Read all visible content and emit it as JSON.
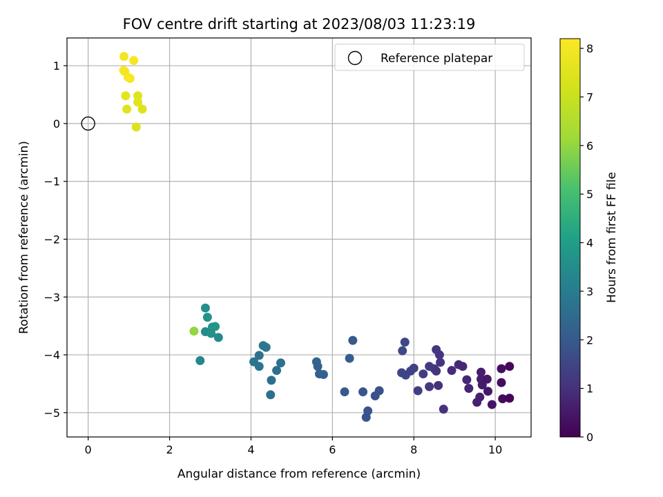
{
  "chart_data": {
    "type": "scatter",
    "title": "FOV centre drift starting at 2023/08/03 11:23:19",
    "xlabel": "Angular distance from reference (arcmin)",
    "ylabel": "Rotation from reference (arcmin)",
    "xlim": [
      -0.52,
      10.88
    ],
    "ylim": [
      -5.42,
      1.48
    ],
    "xticks": [
      0,
      2,
      4,
      6,
      8,
      10
    ],
    "yticks": [
      1,
      0,
      -1,
      -2,
      -3,
      -4,
      -5
    ],
    "xtick_labels": [
      "0",
      "2",
      "4",
      "6",
      "8",
      "10"
    ],
    "ytick_labels": [
      "1",
      "0",
      "−1",
      "−2",
      "−3",
      "−4",
      "−5"
    ],
    "grid": true,
    "colormap": "viridis",
    "colorbar": {
      "label": "Hours from first FF file",
      "range": [
        0,
        8.2
      ],
      "ticks": [
        0,
        1,
        2,
        3,
        4,
        5,
        6,
        7,
        8
      ],
      "tick_labels": [
        "0",
        "1",
        "2",
        "3",
        "4",
        "5",
        "6",
        "7",
        "8"
      ]
    },
    "reference_point": {
      "x": 0,
      "y": 0
    },
    "legend": {
      "position": "top-right",
      "entries": [
        "Reference platepar"
      ]
    },
    "points": [
      {
        "x": 0.88,
        "y": 1.16,
        "t": 7.9
      },
      {
        "x": 1.12,
        "y": 1.09,
        "t": 8.0
      },
      {
        "x": 0.87,
        "y": 0.92,
        "t": 8.1
      },
      {
        "x": 0.9,
        "y": 0.9,
        "t": 8.0
      },
      {
        "x": 1.03,
        "y": 0.78,
        "t": 8.05
      },
      {
        "x": 0.98,
        "y": 0.8,
        "t": 8.1
      },
      {
        "x": 0.92,
        "y": 0.48,
        "t": 7.6
      },
      {
        "x": 1.22,
        "y": 0.48,
        "t": 7.5
      },
      {
        "x": 1.22,
        "y": 0.37,
        "t": 7.55
      },
      {
        "x": 0.95,
        "y": 0.25,
        "t": 7.5
      },
      {
        "x": 1.33,
        "y": 0.25,
        "t": 7.45
      },
      {
        "x": 1.18,
        "y": -0.06,
        "t": 7.4
      },
      {
        "x": 2.6,
        "y": -3.59,
        "t": 6.0
      },
      {
        "x": 2.88,
        "y": -3.19,
        "t": 3.6
      },
      {
        "x": 2.93,
        "y": -3.35,
        "t": 3.7
      },
      {
        "x": 3.05,
        "y": -3.52,
        "t": 3.8
      },
      {
        "x": 3.12,
        "y": -3.51,
        "t": 3.75
      },
      {
        "x": 2.88,
        "y": -3.6,
        "t": 3.5
      },
      {
        "x": 3.02,
        "y": -3.63,
        "t": 3.6
      },
      {
        "x": 3.2,
        "y": -3.7,
        "t": 3.4
      },
      {
        "x": 2.75,
        "y": -4.1,
        "t": 3.3
      },
      {
        "x": 4.3,
        "y": -3.84,
        "t": 2.9
      },
      {
        "x": 4.37,
        "y": -3.87,
        "t": 2.8
      },
      {
        "x": 4.2,
        "y": -4.01,
        "t": 2.7
      },
      {
        "x": 4.07,
        "y": -4.12,
        "t": 2.8
      },
      {
        "x": 4.2,
        "y": -4.2,
        "t": 2.75
      },
      {
        "x": 4.73,
        "y": -4.14,
        "t": 2.7
      },
      {
        "x": 4.63,
        "y": -4.27,
        "t": 2.65
      },
      {
        "x": 4.5,
        "y": -4.44,
        "t": 2.6
      },
      {
        "x": 4.48,
        "y": -4.69,
        "t": 2.6
      },
      {
        "x": 5.61,
        "y": -4.12,
        "t": 2.3
      },
      {
        "x": 5.64,
        "y": -4.2,
        "t": 2.25
      },
      {
        "x": 5.68,
        "y": -4.33,
        "t": 2.2
      },
      {
        "x": 5.78,
        "y": -4.34,
        "t": 2.2
      },
      {
        "x": 6.42,
        "y": -4.06,
        "t": 2.1
      },
      {
        "x": 6.5,
        "y": -3.75,
        "t": 2.0
      },
      {
        "x": 6.3,
        "y": -4.64,
        "t": 2.0
      },
      {
        "x": 6.75,
        "y": -4.64,
        "t": 1.9
      },
      {
        "x": 6.83,
        "y": -5.08,
        "t": 1.8
      },
      {
        "x": 6.87,
        "y": -4.97,
        "t": 1.85
      },
      {
        "x": 7.05,
        "y": -4.71,
        "t": 1.8
      },
      {
        "x": 7.15,
        "y": -4.62,
        "t": 1.8
      },
      {
        "x": 7.72,
        "y": -3.93,
        "t": 1.6
      },
      {
        "x": 7.78,
        "y": -3.78,
        "t": 1.55
      },
      {
        "x": 7.7,
        "y": -4.31,
        "t": 1.5
      },
      {
        "x": 7.8,
        "y": -4.35,
        "t": 1.5
      },
      {
        "x": 7.92,
        "y": -4.28,
        "t": 1.45
      },
      {
        "x": 8.0,
        "y": -4.23,
        "t": 1.4
      },
      {
        "x": 8.1,
        "y": -4.62,
        "t": 1.35
      },
      {
        "x": 8.23,
        "y": -4.33,
        "t": 1.3
      },
      {
        "x": 8.38,
        "y": -4.2,
        "t": 1.25
      },
      {
        "x": 8.38,
        "y": -4.55,
        "t": 1.2
      },
      {
        "x": 8.5,
        "y": -4.24,
        "t": 1.2
      },
      {
        "x": 8.55,
        "y": -3.91,
        "t": 1.15
      },
      {
        "x": 8.63,
        "y": -4.0,
        "t": 1.1
      },
      {
        "x": 8.65,
        "y": -4.13,
        "t": 1.1
      },
      {
        "x": 8.55,
        "y": -4.28,
        "t": 1.05
      },
      {
        "x": 8.6,
        "y": -4.53,
        "t": 1.0
      },
      {
        "x": 8.73,
        "y": -4.94,
        "t": 1.0
      },
      {
        "x": 8.93,
        "y": -4.27,
        "t": 0.9
      },
      {
        "x": 9.1,
        "y": -4.17,
        "t": 0.85
      },
      {
        "x": 9.2,
        "y": -4.2,
        "t": 0.8
      },
      {
        "x": 9.3,
        "y": -4.43,
        "t": 0.8
      },
      {
        "x": 9.35,
        "y": -4.58,
        "t": 0.75
      },
      {
        "x": 9.55,
        "y": -4.82,
        "t": 0.7
      },
      {
        "x": 9.62,
        "y": -4.73,
        "t": 0.65
      },
      {
        "x": 9.65,
        "y": -4.3,
        "t": 0.6
      },
      {
        "x": 9.65,
        "y": -4.42,
        "t": 0.6
      },
      {
        "x": 9.68,
        "y": -4.52,
        "t": 0.55
      },
      {
        "x": 9.8,
        "y": -4.42,
        "t": 0.5
      },
      {
        "x": 9.82,
        "y": -4.63,
        "t": 0.45
      },
      {
        "x": 9.92,
        "y": -4.86,
        "t": 0.4
      },
      {
        "x": 10.15,
        "y": -4.24,
        "t": 0.3
      },
      {
        "x": 10.15,
        "y": -4.48,
        "t": 0.25
      },
      {
        "x": 10.18,
        "y": -4.76,
        "t": 0.2
      },
      {
        "x": 10.35,
        "y": -4.2,
        "t": 0.15
      },
      {
        "x": 10.35,
        "y": -4.75,
        "t": 0.1
      }
    ]
  }
}
